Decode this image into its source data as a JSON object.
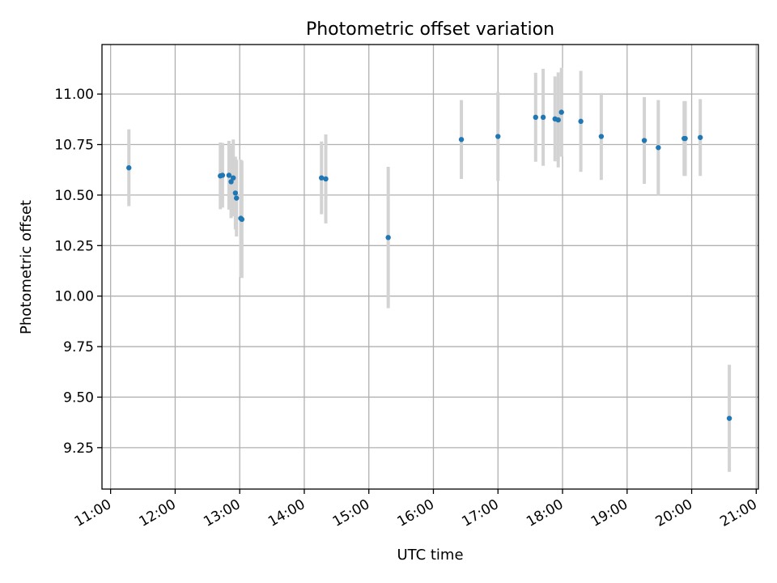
{
  "chart_data": {
    "type": "scatter",
    "title": "Photometric offset variation",
    "xlabel": "UTC time",
    "ylabel": "Photometric offset",
    "xlim": [
      "10:52",
      "21:02"
    ],
    "ylim": [
      9.045,
      11.245
    ],
    "x_ticks": [
      "11:00",
      "12:00",
      "13:00",
      "14:00",
      "15:00",
      "16:00",
      "17:00",
      "18:00",
      "19:00",
      "20:00",
      "21:00"
    ],
    "y_ticks": [
      "9.25",
      "9.50",
      "9.75",
      "10.00",
      "10.25",
      "10.50",
      "10.75",
      "11.00"
    ],
    "grid": true,
    "errorbar_color": "#d3d3d3",
    "marker_color": "#1f77b4",
    "points": [
      {
        "x": "11:17",
        "y": 10.635,
        "yerr": 0.19
      },
      {
        "x": "12:42",
        "y": 10.595,
        "yerr": 0.165
      },
      {
        "x": "12:44",
        "y": 10.598,
        "yerr": 0.16
      },
      {
        "x": "12:50",
        "y": 10.598,
        "yerr": 0.17
      },
      {
        "x": "12:52",
        "y": 10.566,
        "yerr": 0.18
      },
      {
        "x": "12:54",
        "y": 10.585,
        "yerr": 0.19
      },
      {
        "x": "12:56",
        "y": 10.51,
        "yerr": 0.18
      },
      {
        "x": "12:57",
        "y": 10.485,
        "yerr": 0.19
      },
      {
        "x": "13:01",
        "y": 10.385,
        "yerr": 0.29
      },
      {
        "x": "13:02",
        "y": 10.38,
        "yerr": 0.29
      },
      {
        "x": "14:16",
        "y": 10.585,
        "yerr": 0.18
      },
      {
        "x": "14:20",
        "y": 10.58,
        "yerr": 0.22
      },
      {
        "x": "15:18",
        "y": 10.29,
        "yerr": 0.35
      },
      {
        "x": "16:26",
        "y": 10.775,
        "yerr": 0.195
      },
      {
        "x": "17:00",
        "y": 10.79,
        "yerr": 0.22
      },
      {
        "x": "17:35",
        "y": 10.885,
        "yerr": 0.22
      },
      {
        "x": "17:42",
        "y": 10.885,
        "yerr": 0.24
      },
      {
        "x": "17:53",
        "y": 10.877,
        "yerr": 0.21
      },
      {
        "x": "17:56",
        "y": 10.872,
        "yerr": 0.235
      },
      {
        "x": "17:59",
        "y": 10.91,
        "yerr": 0.22
      },
      {
        "x": "18:17",
        "y": 10.865,
        "yerr": 0.25
      },
      {
        "x": "18:36",
        "y": 10.79,
        "yerr": 0.215
      },
      {
        "x": "19:16",
        "y": 10.77,
        "yerr": 0.215
      },
      {
        "x": "19:29",
        "y": 10.735,
        "yerr": 0.235
      },
      {
        "x": "19:53",
        "y": 10.78,
        "yerr": 0.185
      },
      {
        "x": "19:54",
        "y": 10.78,
        "yerr": 0.185
      },
      {
        "x": "20:08",
        "y": 10.785,
        "yerr": 0.19
      },
      {
        "x": "20:35",
        "y": 9.395,
        "yerr": 0.265
      }
    ]
  }
}
